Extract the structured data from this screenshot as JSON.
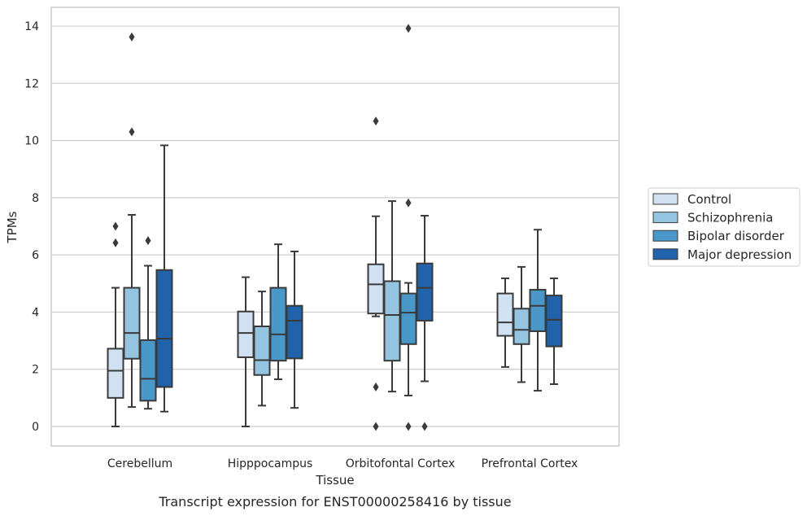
{
  "chart_data": {
    "type": "boxplot",
    "title": "",
    "caption": "Transcript expression for ENST00000258416 by tissue",
    "xlabel": "Tissue",
    "ylabel": "TPMs",
    "ylim": [
      -0.65,
      14.6
    ],
    "yticks": [
      0,
      2,
      4,
      6,
      8,
      10,
      12,
      14
    ],
    "grid": "horizontal",
    "legend_position": "right",
    "categories": [
      "Cerebellum",
      "Hipppocampus",
      "Orbitofontal Cortex",
      "Prefrontal Cortex"
    ],
    "series": [
      {
        "name": "Control",
        "color": "#d0e1f2",
        "boxes": [
          {
            "whislo": 0.0,
            "q1": 1.0,
            "med": 1.95,
            "q3": 2.72,
            "whishi": 4.85,
            "fliers": [
              6.42,
              7.0
            ]
          },
          {
            "whislo": 0.0,
            "q1": 2.42,
            "med": 3.27,
            "q3": 4.02,
            "whishi": 5.22,
            "fliers": []
          },
          {
            "whislo": 3.85,
            "q1": 3.95,
            "med": 4.97,
            "q3": 5.67,
            "whishi": 7.35,
            "fliers": [
              10.68,
              1.38,
              0.0
            ]
          },
          {
            "whislo": 2.08,
            "q1": 3.17,
            "med": 3.64,
            "q3": 4.65,
            "whishi": 5.18,
            "fliers": []
          }
        ]
      },
      {
        "name": "Schizophrenia",
        "color": "#94c4df",
        "boxes": [
          {
            "whislo": 0.68,
            "q1": 2.37,
            "med": 3.27,
            "q3": 4.85,
            "whishi": 7.4,
            "fliers": [
              10.3,
              13.62
            ]
          },
          {
            "whislo": 0.73,
            "q1": 1.8,
            "med": 2.32,
            "q3": 3.5,
            "whishi": 4.72,
            "fliers": []
          },
          {
            "whislo": 1.22,
            "q1": 2.3,
            "med": 3.9,
            "q3": 5.08,
            "whishi": 7.88,
            "fliers": []
          },
          {
            "whislo": 1.55,
            "q1": 2.88,
            "med": 3.38,
            "q3": 4.12,
            "whishi": 5.58,
            "fliers": []
          }
        ]
      },
      {
        "name": "Bipolar disorder",
        "color": "#4a98c9",
        "boxes": [
          {
            "whislo": 0.62,
            "q1": 0.9,
            "med": 1.67,
            "q3": 3.02,
            "whishi": 5.62,
            "fliers": [
              6.5
            ]
          },
          {
            "whislo": 1.65,
            "q1": 2.3,
            "med": 3.22,
            "q3": 4.85,
            "whishi": 6.37,
            "fliers": []
          },
          {
            "whislo": 1.08,
            "q1": 2.88,
            "med": 3.98,
            "q3": 4.65,
            "whishi": 5.02,
            "fliers": [
              7.82,
              13.92,
              0.0
            ]
          },
          {
            "whislo": 1.25,
            "q1": 3.33,
            "med": 4.22,
            "q3": 4.78,
            "whishi": 6.88,
            "fliers": []
          }
        ]
      },
      {
        "name": "Major depression",
        "color": "#2163aa",
        "boxes": [
          {
            "whislo": 0.52,
            "q1": 1.38,
            "med": 3.07,
            "q3": 5.47,
            "whishi": 9.83,
            "fliers": []
          },
          {
            "whislo": 0.65,
            "q1": 2.38,
            "med": 3.7,
            "q3": 4.22,
            "whishi": 6.12,
            "fliers": []
          },
          {
            "whislo": 1.58,
            "q1": 3.7,
            "med": 4.85,
            "q3": 5.7,
            "whishi": 7.37,
            "fliers": [
              0.0
            ]
          },
          {
            "whislo": 1.48,
            "q1": 2.8,
            "med": 3.73,
            "q3": 4.58,
            "whishi": 5.18,
            "fliers": []
          }
        ]
      }
    ]
  }
}
